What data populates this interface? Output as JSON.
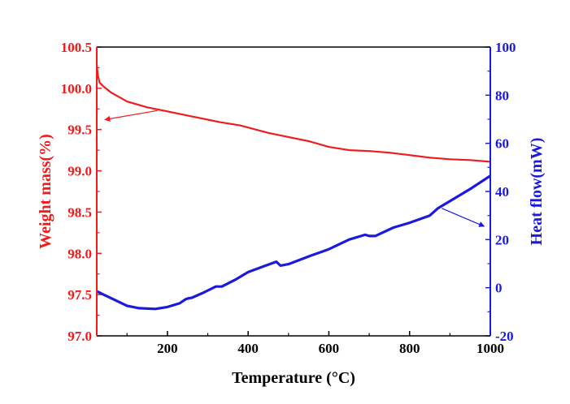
{
  "chart_data": {
    "type": "line",
    "title": "",
    "xlabel": "Temperature (°C)",
    "ylabel_left": "Weight mass(%)",
    "ylabel_right": "Heat flow(mW)",
    "xlim": [
      25,
      1000
    ],
    "ylim_left": [
      97.0,
      100.5
    ],
    "ylim_right": [
      -20,
      100
    ],
    "x_ticks": [
      "200",
      "400",
      "600",
      "800",
      "1000"
    ],
    "y_left_ticks": [
      "97.0",
      "97.5",
      "98.0",
      "98.5",
      "99.0",
      "99.5",
      "100.0",
      "100.5"
    ],
    "y_right_ticks": [
      "-20",
      "0",
      "20",
      "40",
      "60",
      "80",
      "100"
    ],
    "colors": {
      "left": "#ee1c1c",
      "right": "#1a1adf",
      "axis": "#000000"
    },
    "series": [
      {
        "name": "Weight mass",
        "axis": "left",
        "color": "#ee1c1c",
        "x": [
          25,
          28,
          32,
          40,
          60,
          100,
          150,
          200,
          250,
          300,
          330,
          380,
          450,
          500,
          550,
          600,
          650,
          700,
          750,
          800,
          850,
          900,
          950,
          1000
        ],
        "y": [
          100.28,
          100.15,
          100.07,
          100.03,
          99.95,
          99.84,
          99.77,
          99.72,
          99.67,
          99.62,
          99.59,
          99.55,
          99.46,
          99.41,
          99.36,
          99.29,
          99.25,
          99.24,
          99.22,
          99.19,
          99.16,
          99.14,
          99.13,
          99.11
        ]
      },
      {
        "name": "Heat flow",
        "axis": "right",
        "color": "#1a1adf",
        "x": [
          25,
          50,
          100,
          130,
          170,
          200,
          230,
          245,
          250,
          260,
          290,
          320,
          335,
          370,
          400,
          440,
          470,
          480,
          500,
          550,
          600,
          650,
          690,
          700,
          715,
          760,
          800,
          850,
          870,
          900,
          950,
          1000
        ],
        "y": [
          -1.5,
          -3.5,
          -7.5,
          -8.5,
          -8.8,
          -8,
          -6.5,
          -4.8,
          -4.5,
          -4.2,
          -2,
          0.5,
          0.5,
          3.5,
          6.5,
          9,
          10.8,
          9.2,
          9.8,
          13,
          16,
          20,
          22,
          21.5,
          21.5,
          25,
          27,
          30,
          33,
          36,
          41,
          46.5
        ]
      }
    ],
    "annotations": [
      {
        "type": "arrow",
        "target": "left-axis",
        "color": "#ee1c1c",
        "from": [
          175,
          99.73
        ],
        "to": [
          45,
          99.62
        ]
      },
      {
        "type": "arrow",
        "target": "right-axis",
        "color": "#1a1adf",
        "from": [
          880,
          33
        ],
        "to": [
          985,
          25.5
        ]
      }
    ]
  }
}
